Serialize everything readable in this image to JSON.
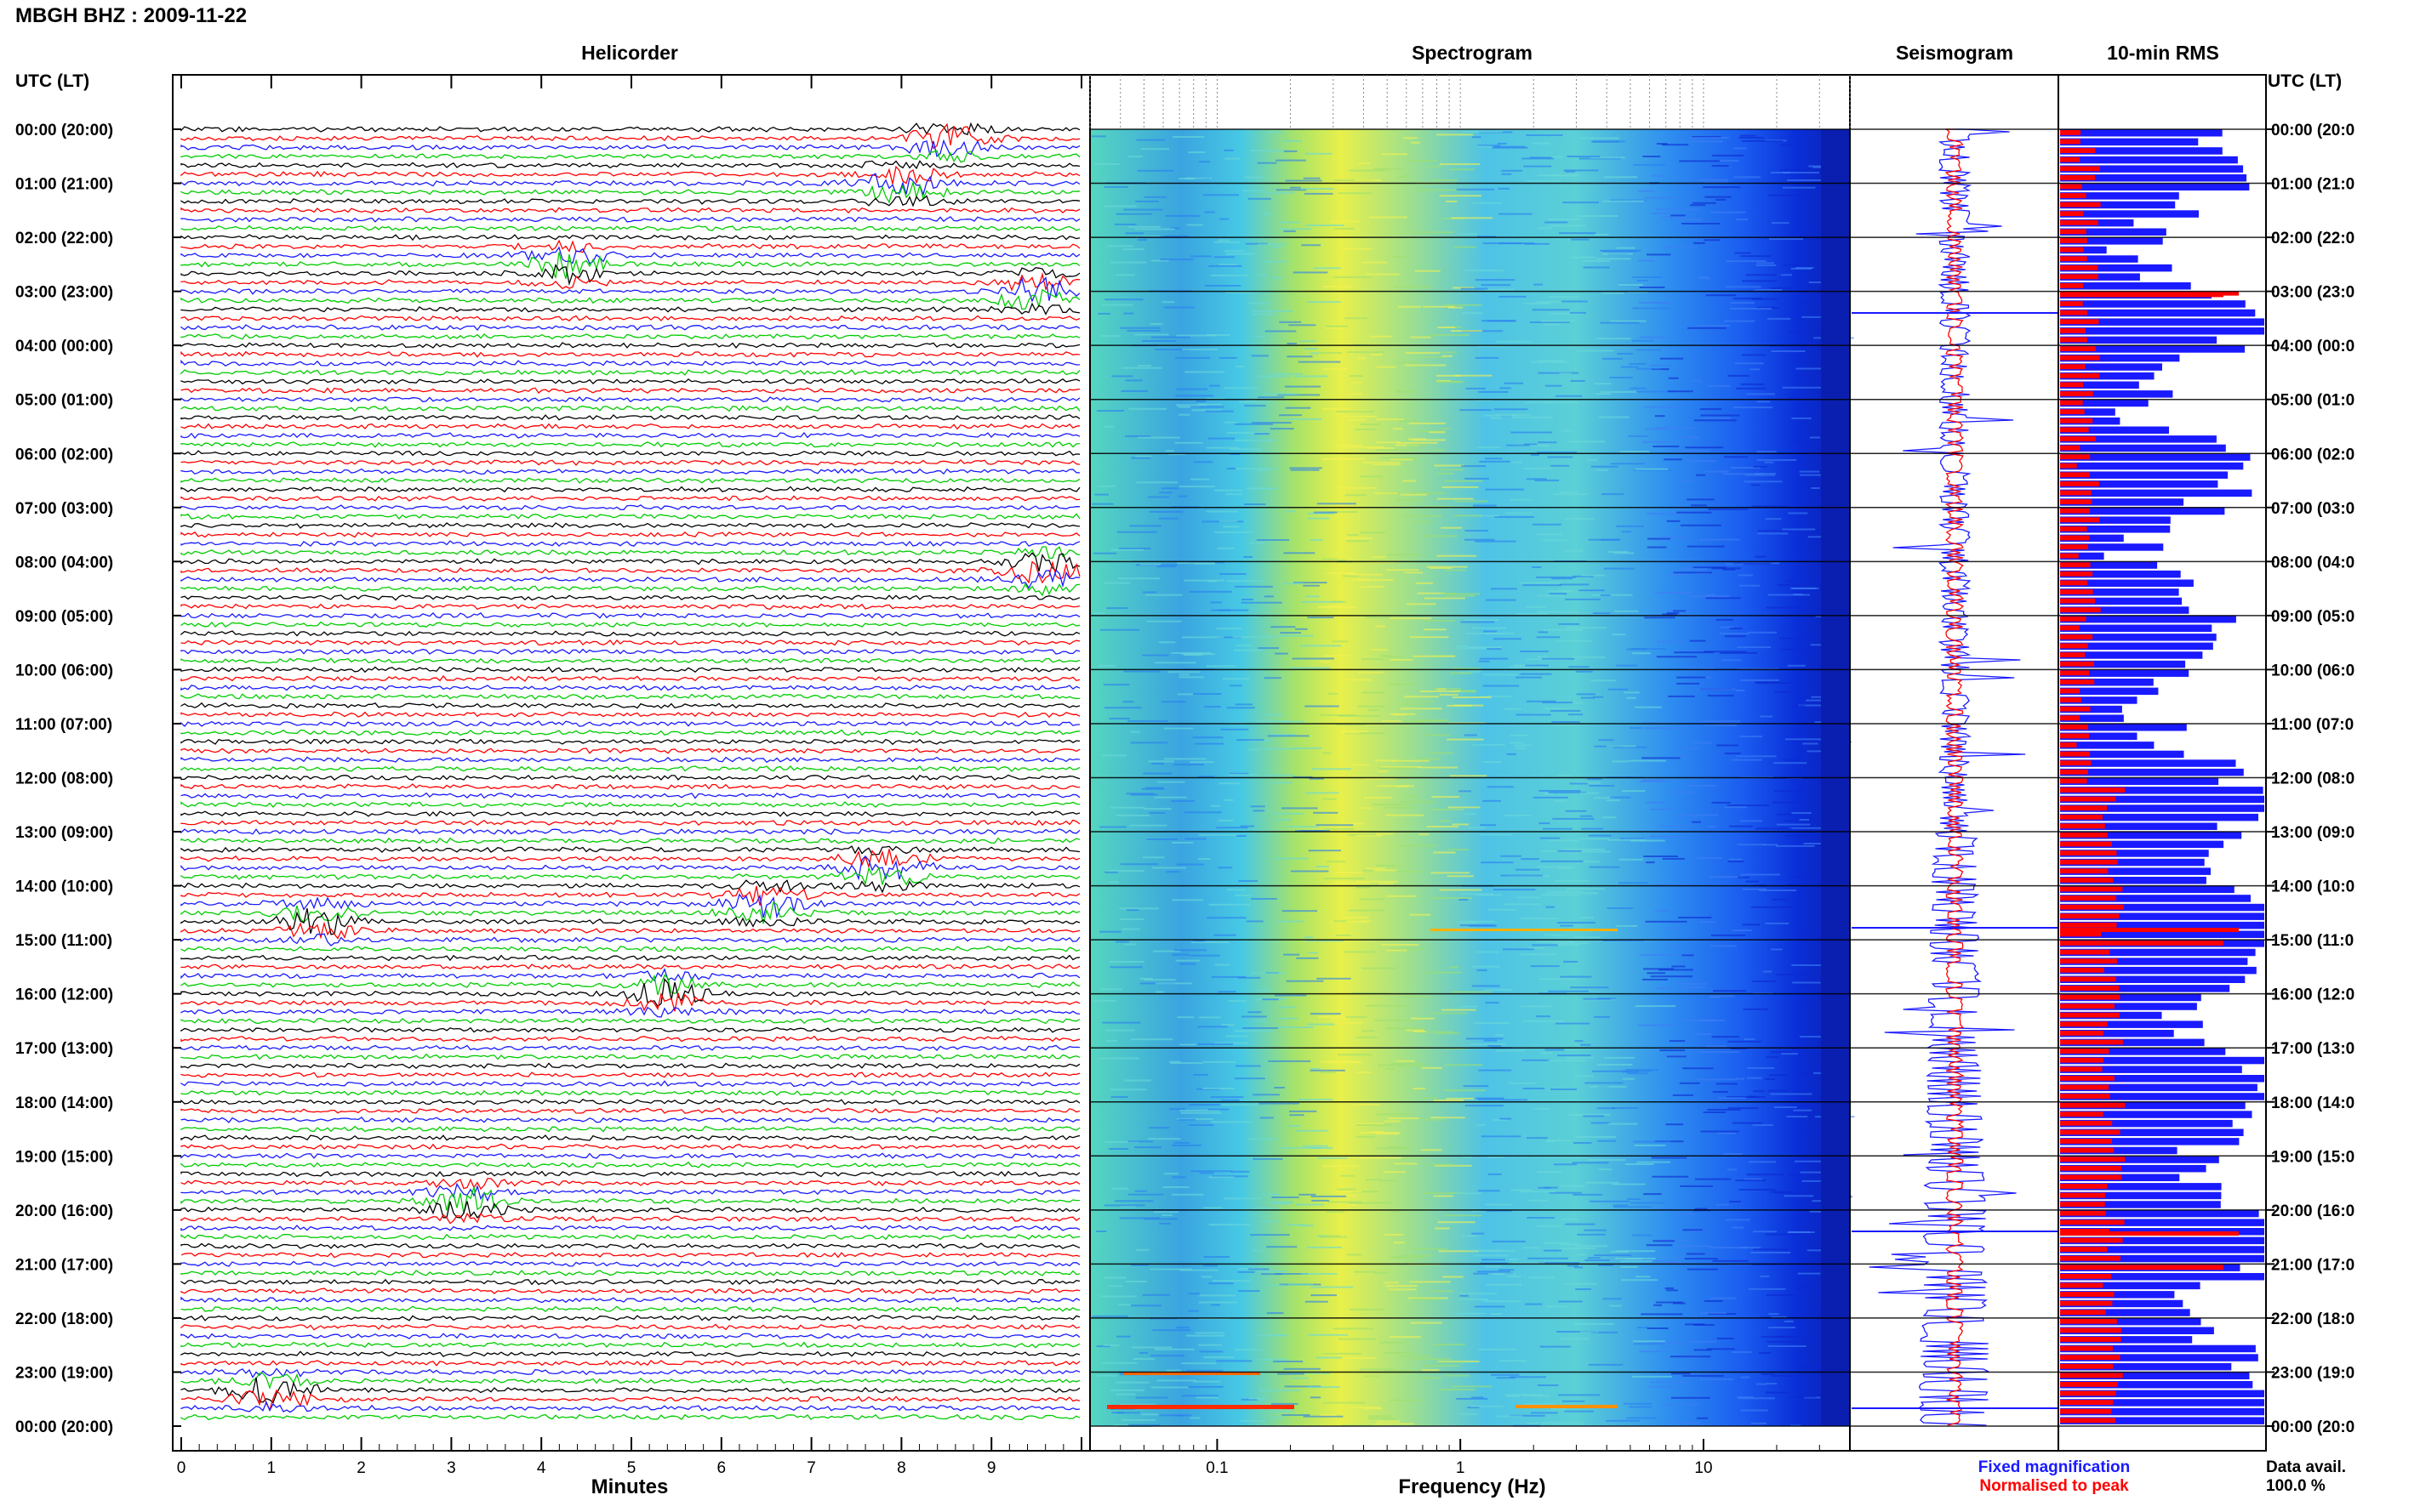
{
  "header": {
    "title": "MBGH BHZ : 2009-11-22",
    "utc_label_left": "UTC (LT)",
    "utc_label_right": "UTC (LT)"
  },
  "panels": {
    "helicorder": "Helicorder",
    "spectrogram": "Spectrogram",
    "seismogram": "Seismogram",
    "rms": "10-min RMS"
  },
  "axes": {
    "helicorder_xlabel": "Minutes",
    "helicorder_ticks": [
      "0",
      "1",
      "2",
      "3",
      "4",
      "5",
      "6",
      "7",
      "8",
      "9"
    ],
    "spectrogram_xlabel": "Frequency (Hz)",
    "spectrogram_ticks": [
      "0.1",
      "1",
      "10"
    ]
  },
  "legend": {
    "fixed": "Fixed magnification",
    "normalised": "Normalised to peak",
    "fixed_color": "#1a1aff",
    "normalised_color": "#ff0000"
  },
  "data_avail": {
    "label": "Data avail.",
    "value": "100.0 %"
  },
  "time_labels_left": [
    "00:00 (20:00)",
    "01:00 (21:00)",
    "02:00 (22:00)",
    "03:00 (23:00)",
    "04:00 (00:00)",
    "05:00 (01:00)",
    "06:00 (02:00)",
    "07:00 (03:00)",
    "08:00 (04:00)",
    "09:00 (05:00)",
    "10:00 (06:00)",
    "11:00 (07:00)",
    "12:00 (08:00)",
    "13:00 (09:00)",
    "14:00 (10:00)",
    "15:00 (11:00)",
    "16:00 (12:00)",
    "17:00 (13:00)",
    "18:00 (14:00)",
    "19:00 (15:00)",
    "20:00 (16:00)",
    "21:00 (17:00)",
    "22:00 (18:00)",
    "23:00 (19:00)",
    "00:00 (20:00)"
  ],
  "time_labels_right": [
    "00:00 (20:0",
    "01:00 (21:0",
    "02:00 (22:0",
    "03:00 (23:0",
    "04:00 (00:0",
    "05:00 (01:0",
    "06:00 (02:0",
    "07:00 (03:0",
    "08:00 (04:0",
    "09:00 (05:0",
    "10:00 (06:0",
    "11:00 (07:0",
    "12:00 (08:0",
    "13:00 (09:0",
    "14:00 (10:0",
    "15:00 (11:0",
    "16:00 (12:0",
    "17:00 (13:0",
    "18:00 (14:0",
    "19:00 (15:0",
    "20:00 (16:0",
    "21:00 (17:0",
    "22:00 (18:0",
    "23:00 (19:0",
    "00:00 (20:0"
  ],
  "chart_data": [
    {
      "type": "line",
      "panel": "Helicorder",
      "xlabel": "Minutes",
      "xlim": [
        0,
        10
      ],
      "trace_colors": [
        "#000000",
        "#ff0000",
        "#1a1aff",
        "#00cc00"
      ],
      "events": [
        {
          "time_utc": "00:10",
          "minute": 8.5
        },
        {
          "time_utc": "01:00",
          "minute": 8.0
        },
        {
          "time_utc": "02:30",
          "minute": 4.3
        },
        {
          "time_utc": "03:00",
          "minute": 9.5
        },
        {
          "time_utc": "08:10",
          "minute": 9.6
        },
        {
          "time_utc": "13:40",
          "minute": 7.8
        },
        {
          "time_utc": "14:20",
          "minute": 6.5
        },
        {
          "time_utc": "14:40",
          "minute": 1.5
        },
        {
          "time_utc": "16:00",
          "minute": 5.4
        },
        {
          "time_utc": "19:50",
          "minute": 3.2
        },
        {
          "time_utc": "23:20",
          "minute": 1.0
        }
      ]
    },
    {
      "type": "heatmap",
      "panel": "Spectrogram",
      "xlabel": "Frequency (Hz)",
      "x_scale": "log",
      "xlim": [
        0.03,
        40
      ],
      "xticks": [
        0.1,
        1,
        10
      ],
      "colormap": [
        "#00008b",
        "#1a3cff",
        "#1e90ff",
        "#00e0e0",
        "#7fff7f",
        "#ffff00",
        "#ff8c00",
        "#ff0000"
      ]
    },
    {
      "type": "line",
      "panel": "Seismogram",
      "series": [
        {
          "name": "Fixed magnification",
          "color": "#1a1aff"
        },
        {
          "name": "Normalised to peak",
          "color": "#ff0000"
        }
      ]
    },
    {
      "type": "bar",
      "panel": "10-min RMS",
      "orientation": "horizontal",
      "series": [
        {
          "name": "Fixed magnification",
          "color": "#1a1aff"
        },
        {
          "name": "Normalised to peak",
          "color": "#ff0000"
        }
      ]
    }
  ]
}
